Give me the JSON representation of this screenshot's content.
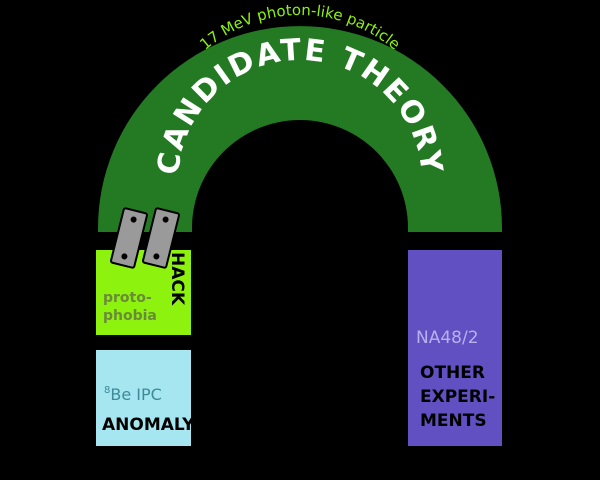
{
  "arch": {
    "title": "CANDIDATE THEORY",
    "subtitle": "17 MeV photon-like particle"
  },
  "left_column": {
    "hack_label": "HACK",
    "proto_line1": "proto-",
    "proto_line2": "phobia",
    "ipc_superscript": "8",
    "ipc_label": "Be IPC",
    "anomaly_label": "ANOMALY"
  },
  "right_column": {
    "na_label": "NA48/2",
    "exp_line1": "OTHER",
    "exp_line2": "EXPERI-",
    "exp_line3": "MENTS"
  },
  "colors": {
    "arch_green": "#237a23",
    "hack_green": "#8cf20e",
    "proto_text": "#6a8a3a",
    "anomaly_blue": "#a6e6f0",
    "ipc_text": "#3d8a98",
    "experiments_purple": "#6150c2",
    "na_text": "#b8b0f0",
    "subtitle_green": "#8cf20e",
    "clip_gray": "#9a9a9a"
  }
}
